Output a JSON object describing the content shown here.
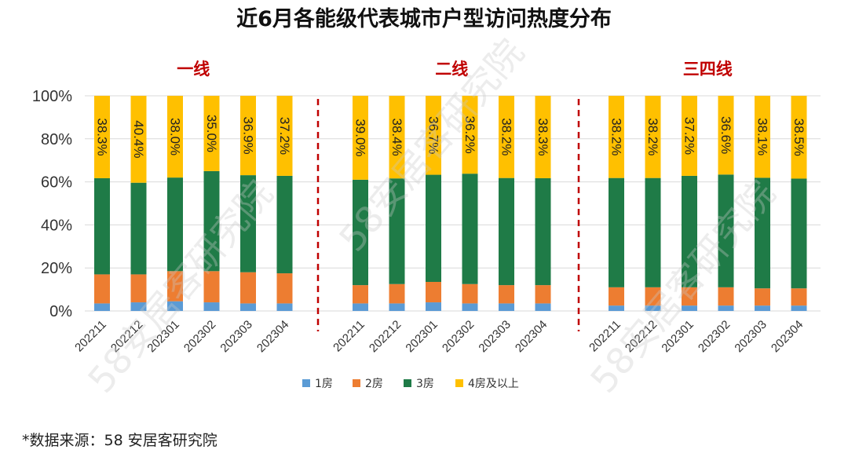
{
  "title": "近6月各能级代表城市户型访问热度分布",
  "source": "*数据来源：58 安居客研究院",
  "watermark": "58安居客研究院",
  "chart_data": {
    "type": "bar",
    "stacked": true,
    "percent": true,
    "ylim": [
      0,
      100
    ],
    "yticks": [
      "0%",
      "20%",
      "40%",
      "60%",
      "80%",
      "100%"
    ],
    "colors": {
      "1房": "#5B9BD5",
      "2房": "#ED7D31",
      "3房": "#1F7B47",
      "4房及以上": "#FFC000",
      "group_label": "#C00000",
      "divider": "#C00000"
    },
    "legend": [
      "1房",
      "2房",
      "3房",
      "4房及以上"
    ],
    "groups": [
      {
        "name": "一线",
        "categories": [
          "202211",
          "202212",
          "202301",
          "202302",
          "202303",
          "202304"
        ],
        "series": [
          {
            "name": "1房",
            "values": [
              3.5,
              4.0,
              4.5,
              4.0,
              3.5,
              3.5
            ]
          },
          {
            "name": "2房",
            "values": [
              13.5,
              13.0,
              14.0,
              14.5,
              14.5,
              14.0
            ]
          },
          {
            "name": "3房",
            "values": [
              44.7,
              42.6,
              43.5,
              46.5,
              45.1,
              45.3
            ]
          },
          {
            "name": "4房及以上",
            "values": [
              38.3,
              40.4,
              38.0,
              35.0,
              36.9,
              37.2
            ]
          }
        ],
        "labels": [
          "38.3%",
          "40.4%",
          "38.0%",
          "35.0%",
          "36.9%",
          "37.2%"
        ]
      },
      {
        "name": "二线",
        "categories": [
          "202211",
          "202212",
          "202301",
          "202302",
          "202303",
          "202304"
        ],
        "series": [
          {
            "name": "1房",
            "values": [
              3.5,
              3.5,
              4.0,
              3.5,
              3.5,
              3.5
            ]
          },
          {
            "name": "2房",
            "values": [
              8.5,
              9.0,
              9.5,
              9.0,
              8.5,
              8.5
            ]
          },
          {
            "name": "3房",
            "values": [
              49.0,
              49.1,
              49.8,
              51.3,
              49.8,
              49.7
            ]
          },
          {
            "name": "4房及以上",
            "values": [
              39.0,
              38.4,
              36.7,
              36.2,
              38.2,
              38.3
            ]
          }
        ],
        "labels": [
          "39.0%",
          "38.4%",
          "36.7%",
          "36.2%",
          "38.2%",
          "38.3%"
        ]
      },
      {
        "name": "三四线",
        "categories": [
          "202211",
          "202212",
          "202301",
          "202302",
          "202303",
          "202304"
        ],
        "series": [
          {
            "name": "1房",
            "values": [
              2.5,
              2.5,
              2.5,
              2.5,
              2.5,
              2.5
            ]
          },
          {
            "name": "2房",
            "values": [
              8.5,
              8.5,
              8.5,
              8.5,
              8.0,
              8.0
            ]
          },
          {
            "name": "3房",
            "values": [
              50.8,
              50.8,
              51.8,
              52.4,
              51.4,
              51.0
            ]
          },
          {
            "name": "4房及以上",
            "values": [
              38.2,
              38.2,
              37.2,
              36.6,
              38.1,
              38.5
            ]
          }
        ],
        "labels": [
          "38.2%",
          "38.2%",
          "37.2%",
          "36.6%",
          "38.1%",
          "38.5%"
        ]
      }
    ]
  }
}
